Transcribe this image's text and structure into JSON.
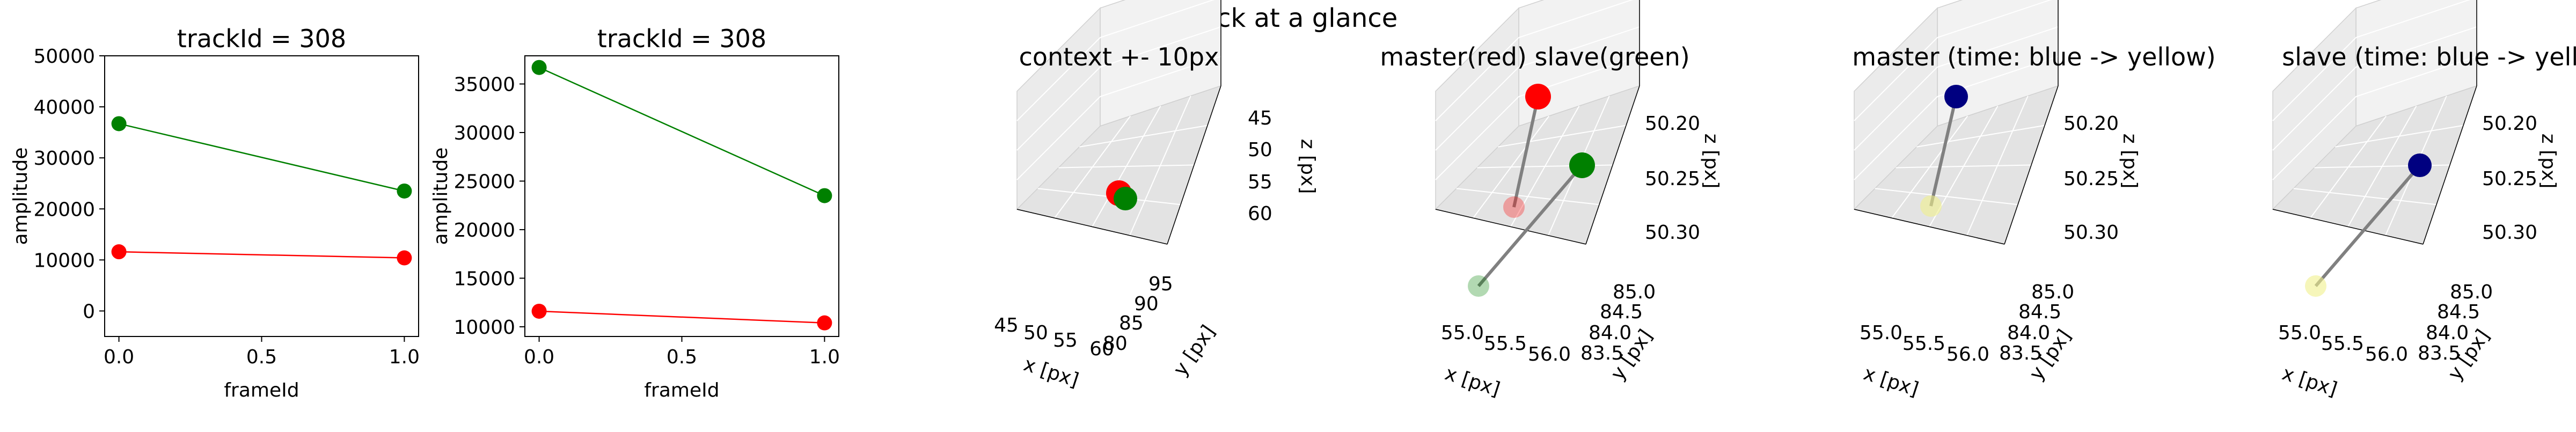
{
  "suptitle": "Track at a glance",
  "chart_data": [
    {
      "type": "line",
      "title": "trackId = 308",
      "xlabel": "frameId",
      "ylabel": "amplitude",
      "xlim": [
        -0.05,
        1.05
      ],
      "ylim": [
        -5000,
        50000
      ],
      "xticks": [
        0.0,
        0.5,
        1.0
      ],
      "xtick_labels": [
        "0.0",
        "0.5",
        "1.0"
      ],
      "yticks": [
        0,
        10000,
        20000,
        30000,
        40000,
        50000
      ],
      "ytick_labels": [
        "0",
        "10000",
        "20000",
        "30000",
        "40000",
        "50000"
      ],
      "series": [
        {
          "color": "#008000",
          "x": [
            0,
            1
          ],
          "y": [
            36700,
            23500
          ]
        },
        {
          "color": "#ff0000",
          "x": [
            0,
            1
          ],
          "y": [
            11600,
            10400
          ]
        }
      ]
    },
    {
      "type": "line",
      "title": "trackId = 308",
      "xlabel": "frameId",
      "ylabel": "amplitude",
      "xlim": [
        -0.05,
        1.05
      ],
      "ylim": [
        9000,
        37900
      ],
      "xticks": [
        0.0,
        0.5,
        1.0
      ],
      "xtick_labels": [
        "0.0",
        "0.5",
        "1.0"
      ],
      "yticks": [
        10000,
        15000,
        20000,
        25000,
        30000,
        35000
      ],
      "ytick_labels": [
        "10000",
        "15000",
        "20000",
        "25000",
        "30000",
        "35000"
      ],
      "series": [
        {
          "color": "#008000",
          "x": [
            0,
            1
          ],
          "y": [
            36700,
            23500
          ]
        },
        {
          "color": "#ff0000",
          "x": [
            0,
            1
          ],
          "y": [
            11600,
            10400
          ]
        }
      ]
    },
    {
      "type": "scatter3d",
      "title": "context +- 10px",
      "xlabel": "x [px]",
      "ylabel": "y [px]",
      "zlabel": "z [px]",
      "xtick_labels": [
        "45",
        "50",
        "55",
        "60"
      ],
      "ytick_labels": [
        "80",
        "85",
        "90",
        "95"
      ],
      "ztick_labels": [
        "45",
        "50",
        "55",
        "60"
      ],
      "points": [
        {
          "x": 55.0,
          "y": 84.0,
          "z": 50.26,
          "color": "#ff0000"
        },
        {
          "x": 55.5,
          "y": 84.5,
          "z": 50.25,
          "color": "#008000"
        }
      ]
    },
    {
      "type": "scatter3d",
      "title": "master(red) slave(green)",
      "xlabel": "x [px]",
      "ylabel": "y [px]",
      "zlabel": "z [px]",
      "xtick_labels": [
        "55.0",
        "55.5",
        "56.0"
      ],
      "ytick_labels": [
        "83.5",
        "84.0",
        "84.5",
        "85.0"
      ],
      "ztick_labels": [
        "50.20",
        "50.25",
        "50.30"
      ],
      "grid": true
    },
    {
      "type": "scatter3d",
      "title": "master (time: blue -> yellow)",
      "xlabel": "x [px]",
      "ylabel": "y [px]",
      "zlabel": "z [px]",
      "xtick_labels": [
        "55.0",
        "55.5",
        "56.0"
      ],
      "ytick_labels": [
        "83.5",
        "84.0",
        "84.5",
        "85.0"
      ],
      "ztick_labels": [
        "50.20",
        "50.25",
        "50.30"
      ],
      "grid": true
    },
    {
      "type": "scatter3d",
      "title": "slave (time: blue -> yellow)",
      "xlabel": "x [px]",
      "ylabel": "y [px]",
      "zlabel": "z [px]",
      "xtick_labels": [
        "55.0",
        "55.5",
        "56.0"
      ],
      "ytick_labels": [
        "83.5",
        "84.0",
        "84.5",
        "85.0"
      ],
      "ztick_labels": [
        "50.20",
        "50.25",
        "50.30"
      ],
      "grid": true
    }
  ]
}
